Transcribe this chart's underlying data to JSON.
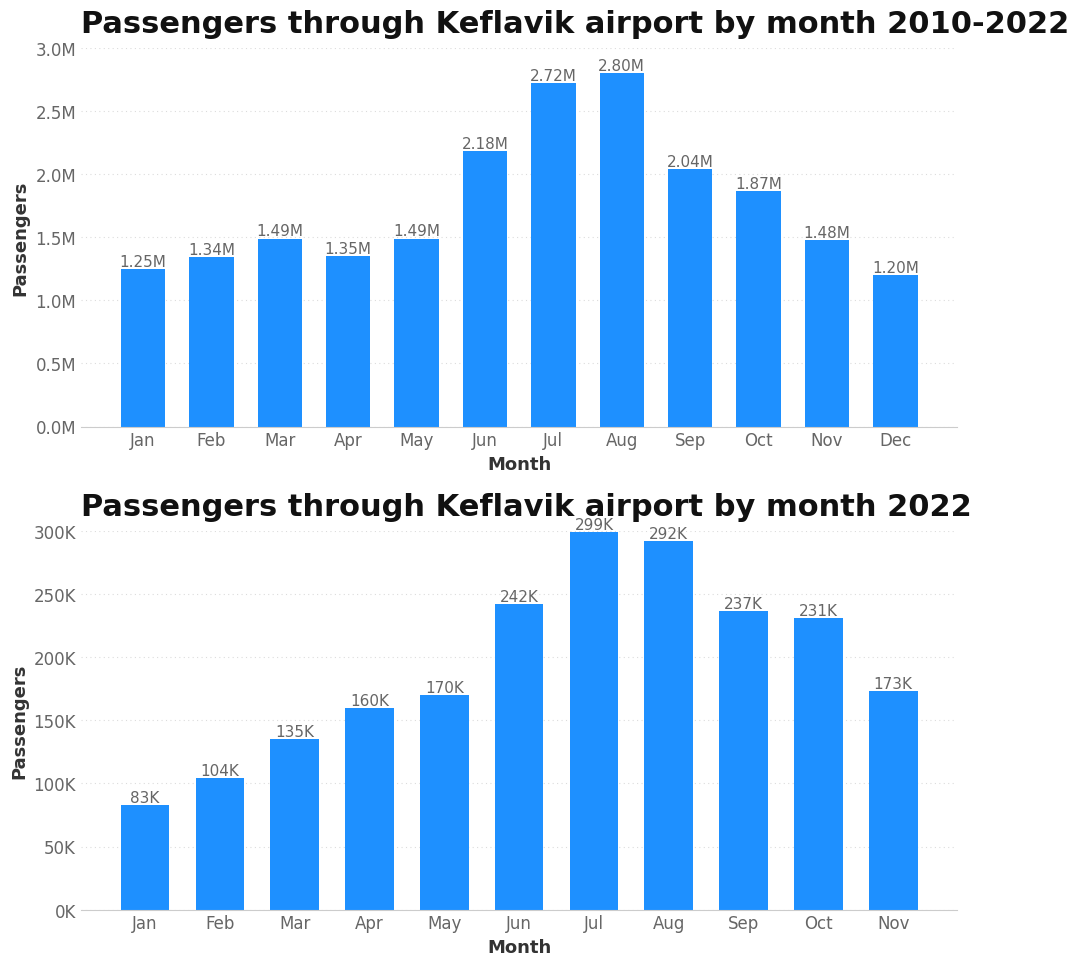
{
  "chart1": {
    "title": "Passengers through Keflavik airport by month 2010-2022",
    "months": [
      "Jan",
      "Feb",
      "Mar",
      "Apr",
      "May",
      "Jun",
      "Jul",
      "Aug",
      "Sep",
      "Oct",
      "Nov",
      "Dec"
    ],
    "values": [
      1250000,
      1340000,
      1490000,
      1350000,
      1490000,
      2180000,
      2720000,
      2800000,
      2040000,
      1870000,
      1480000,
      1200000
    ],
    "labels": [
      "1.25M",
      "1.34M",
      "1.49M",
      "1.35M",
      "1.49M",
      "2.18M",
      "2.72M",
      "2.80M",
      "2.04M",
      "1.87M",
      "1.48M",
      "1.20M"
    ],
    "bar_color": "#1E90FF",
    "xlabel": "Month",
    "ylabel": "Passengers",
    "ylim": [
      0,
      3000000
    ],
    "yticks": [
      0,
      500000,
      1000000,
      1500000,
      2000000,
      2500000,
      3000000
    ],
    "ytick_labels": [
      "0.0M",
      "0.5M",
      "1.0M",
      "1.5M",
      "2.0M",
      "2.5M",
      "3.0M"
    ]
  },
  "chart2": {
    "title": "Passengers through Keflavik airport by month 2022",
    "months": [
      "Jan",
      "Feb",
      "Mar",
      "Apr",
      "May",
      "Jun",
      "Jul",
      "Aug",
      "Sep",
      "Oct",
      "Nov"
    ],
    "values": [
      83000,
      104000,
      135000,
      160000,
      170000,
      242000,
      299000,
      292000,
      237000,
      231000,
      173000
    ],
    "labels": [
      "83K",
      "104K",
      "135K",
      "160K",
      "170K",
      "242K",
      "299K",
      "292K",
      "237K",
      "231K",
      "173K"
    ],
    "bar_color": "#1E90FF",
    "xlabel": "Month",
    "ylabel": "Passengers",
    "ylim": [
      0,
      300000
    ],
    "yticks": [
      0,
      50000,
      100000,
      150000,
      200000,
      250000,
      300000
    ],
    "ytick_labels": [
      "0K",
      "50K",
      "100K",
      "150K",
      "200K",
      "250K",
      "300K"
    ]
  },
  "background_color": "#ffffff",
  "bar_edge_color": "none",
  "label_color": "#666666",
  "label_fontsize": 11,
  "title_fontsize": 22,
  "title_fontweight": "bold",
  "title_color": "#111111",
  "axis_label_fontsize": 13,
  "axis_label_color": "#333333",
  "tick_fontsize": 12,
  "tick_color": "#666666",
  "grid_color": "#cccccc",
  "grid_alpha": 0.7
}
